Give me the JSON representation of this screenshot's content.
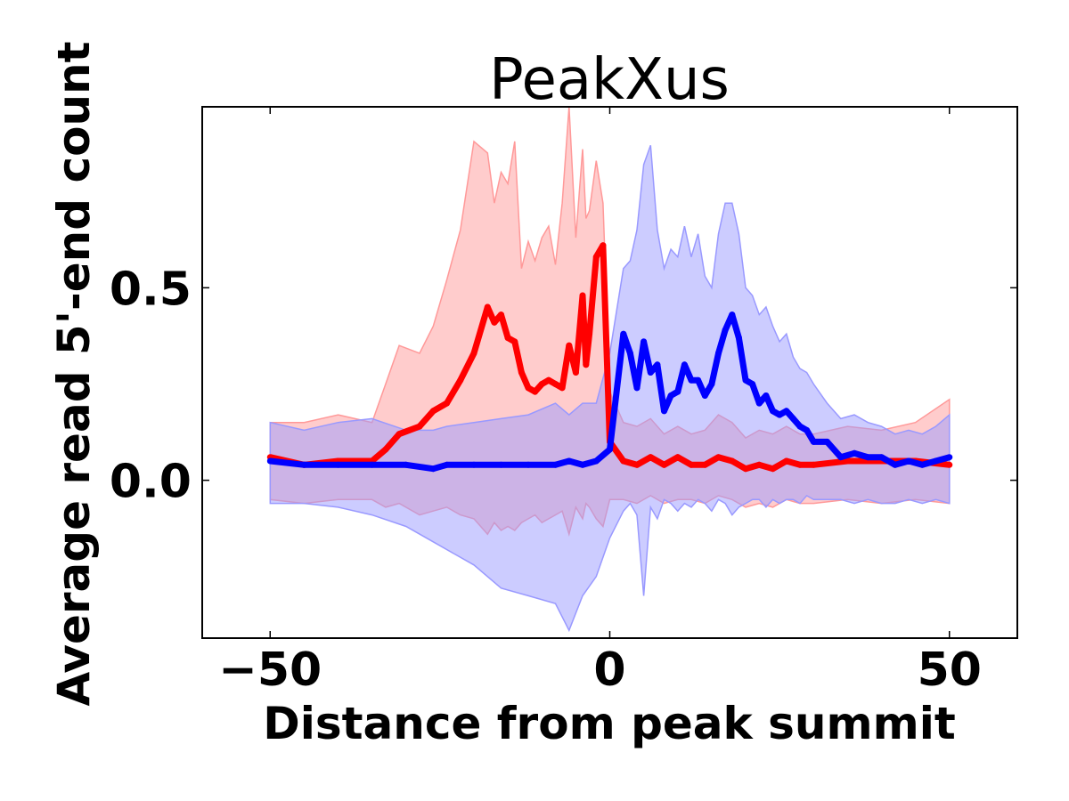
{
  "chart_data": {
    "type": "line",
    "title": "PeakXus",
    "xlabel": "Distance from peak summit",
    "ylabel": "Average read 5'-end count",
    "xlim": [
      -60,
      60
    ],
    "ylim": [
      -0.41,
      0.97
    ],
    "xticks": [
      -50,
      0,
      50
    ],
    "xtick_labels": [
      "−50",
      "0",
      "50"
    ],
    "yticks": [
      0.0,
      0.5
    ],
    "ytick_labels": [
      "0.0",
      "0.5"
    ],
    "grid": false,
    "legend": "none",
    "series": [
      {
        "color": "#ff0000",
        "band_color": "#ff9999",
        "x": [
          -50,
          -45,
          -40,
          -35,
          -33,
          -31,
          -28,
          -26,
          -24,
          -22,
          -20,
          -18,
          -17,
          -16,
          -15,
          -14,
          -13,
          -12,
          -11,
          -10,
          -9,
          -8,
          -7,
          -6,
          -5,
          -4,
          -3.5,
          -3,
          -2,
          -1,
          0,
          2,
          4,
          6,
          8,
          10,
          12,
          14,
          16,
          18,
          20,
          22,
          24,
          26,
          28,
          30,
          35,
          40,
          45,
          50
        ],
        "y": [
          0.06,
          0.04,
          0.05,
          0.05,
          0.08,
          0.12,
          0.14,
          0.18,
          0.2,
          0.26,
          0.33,
          0.45,
          0.41,
          0.43,
          0.37,
          0.36,
          0.28,
          0.24,
          0.23,
          0.25,
          0.26,
          0.25,
          0.24,
          0.35,
          0.28,
          0.48,
          0.3,
          0.38,
          0.58,
          0.61,
          0.1,
          0.05,
          0.04,
          0.06,
          0.04,
          0.06,
          0.04,
          0.04,
          0.06,
          0.05,
          0.03,
          0.04,
          0.03,
          0.05,
          0.04,
          0.04,
          0.05,
          0.05,
          0.05,
          0.04
        ],
        "upper": [
          0.15,
          0.15,
          0.17,
          0.15,
          0.25,
          0.35,
          0.33,
          0.4,
          0.52,
          0.65,
          0.88,
          0.85,
          0.72,
          0.8,
          0.77,
          0.88,
          0.55,
          0.62,
          0.57,
          0.63,
          0.66,
          0.56,
          0.72,
          0.97,
          0.63,
          0.86,
          0.68,
          0.7,
          0.83,
          0.72,
          0.23,
          0.15,
          0.14,
          0.16,
          0.12,
          0.14,
          0.12,
          0.13,
          0.17,
          0.15,
          0.11,
          0.13,
          0.12,
          0.14,
          0.12,
          0.12,
          0.14,
          0.13,
          0.15,
          0.21
        ],
        "lower": [
          -0.05,
          -0.06,
          -0.05,
          -0.05,
          -0.07,
          -0.06,
          -0.09,
          -0.08,
          -0.07,
          -0.09,
          -0.1,
          -0.14,
          -0.11,
          -0.13,
          -0.12,
          -0.13,
          -0.11,
          -0.1,
          -0.09,
          -0.11,
          -0.1,
          -0.09,
          -0.08,
          -0.14,
          -0.07,
          -0.1,
          -0.06,
          -0.07,
          -0.1,
          -0.12,
          -0.05,
          -0.05,
          -0.06,
          -0.04,
          -0.06,
          -0.05,
          -0.05,
          -0.06,
          -0.04,
          -0.05,
          -0.07,
          -0.06,
          -0.07,
          -0.05,
          -0.06,
          -0.06,
          -0.05,
          -0.06,
          -0.05,
          -0.06
        ]
      },
      {
        "color": "#0000ff",
        "band_color": "#9999ff",
        "x": [
          -50,
          -45,
          -40,
          -35,
          -30,
          -26,
          -24,
          -20,
          -16,
          -12,
          -8,
          -6,
          -4,
          -2,
          0,
          2,
          3,
          4,
          5,
          6,
          7,
          8,
          9,
          10,
          11,
          12,
          13,
          14,
          15,
          16,
          17,
          18,
          19,
          20,
          21,
          22,
          23,
          24,
          25,
          26,
          27,
          28,
          29,
          30,
          32,
          34,
          36,
          38,
          40,
          42,
          44,
          46,
          48,
          50
        ],
        "y": [
          0.05,
          0.04,
          0.04,
          0.04,
          0.04,
          0.03,
          0.04,
          0.04,
          0.04,
          0.04,
          0.04,
          0.05,
          0.04,
          0.05,
          0.08,
          0.38,
          0.33,
          0.24,
          0.36,
          0.28,
          0.3,
          0.18,
          0.22,
          0.23,
          0.3,
          0.26,
          0.26,
          0.22,
          0.25,
          0.33,
          0.39,
          0.43,
          0.37,
          0.26,
          0.25,
          0.2,
          0.22,
          0.18,
          0.17,
          0.18,
          0.16,
          0.14,
          0.13,
          0.1,
          0.1,
          0.06,
          0.07,
          0.06,
          0.06,
          0.04,
          0.05,
          0.04,
          0.05,
          0.06
        ],
        "upper": [
          0.15,
          0.13,
          0.15,
          0.16,
          0.13,
          0.13,
          0.14,
          0.15,
          0.16,
          0.17,
          0.2,
          0.17,
          0.2,
          0.2,
          0.33,
          0.55,
          0.57,
          0.65,
          0.82,
          0.87,
          0.65,
          0.55,
          0.6,
          0.58,
          0.66,
          0.58,
          0.64,
          0.53,
          0.5,
          0.64,
          0.72,
          0.72,
          0.64,
          0.5,
          0.48,
          0.43,
          0.45,
          0.4,
          0.36,
          0.38,
          0.32,
          0.29,
          0.28,
          0.25,
          0.2,
          0.16,
          0.17,
          0.15,
          0.14,
          0.12,
          0.13,
          0.12,
          0.14,
          0.17
        ],
        "lower": [
          -0.06,
          -0.06,
          -0.07,
          -0.09,
          -0.12,
          -0.16,
          -0.18,
          -0.22,
          -0.28,
          -0.3,
          -0.32,
          -0.39,
          -0.3,
          -0.25,
          -0.15,
          -0.08,
          -0.06,
          -0.09,
          -0.3,
          -0.07,
          -0.1,
          -0.05,
          -0.06,
          -0.08,
          -0.06,
          -0.07,
          -0.05,
          -0.06,
          -0.08,
          -0.05,
          -0.06,
          -0.09,
          -0.07,
          -0.06,
          -0.05,
          -0.05,
          -0.07,
          -0.05,
          -0.06,
          -0.05,
          -0.05,
          -0.06,
          -0.04,
          -0.05,
          -0.05,
          -0.05,
          -0.06,
          -0.05,
          -0.06,
          -0.06,
          -0.05,
          -0.06,
          -0.05,
          -0.06
        ]
      }
    ]
  }
}
